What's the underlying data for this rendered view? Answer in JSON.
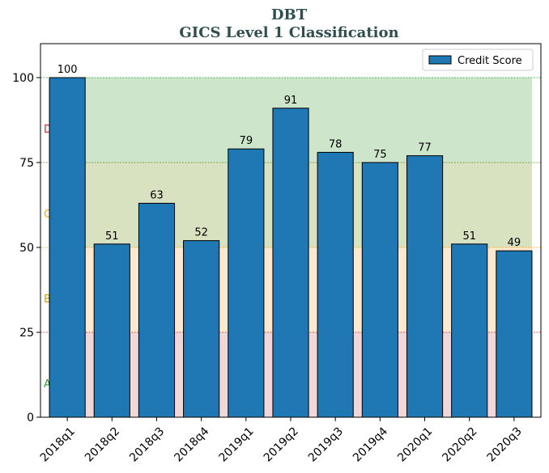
{
  "chart_data": {
    "type": "bar",
    "title": "DBT",
    "subtitle": "GICS Level 1 Classification",
    "categories": [
      "2018q1",
      "2018q2",
      "2018q3",
      "2018q4",
      "2019q1",
      "2019q2",
      "2019q3",
      "2019q4",
      "2020q1",
      "2020q2",
      "2020q3"
    ],
    "series": [
      {
        "name": "Credit Score",
        "values": [
          100,
          51,
          63,
          52,
          79,
          91,
          78,
          75,
          77,
          51,
          49
        ],
        "color": "#1f77b4"
      }
    ],
    "ylim": [
      0,
      110
    ],
    "yticks": [
      0,
      25,
      50,
      75,
      100
    ],
    "xlabel": "",
    "ylabel": "",
    "legend": {
      "position": "top-right"
    },
    "bands": [
      {
        "label": "A",
        "from": 0,
        "to": 25,
        "color": "#f2d7d9",
        "line_color": "#d62728",
        "label_color": "#2ca02c"
      },
      {
        "label": "B",
        "from": 25,
        "to": 50,
        "color": "#fde9cf",
        "line_color": "#ff9f00",
        "label_color": "#d4a000"
      },
      {
        "label": "C",
        "from": 50,
        "to": 75,
        "color": "#d8e2c1",
        "line_color": "#6b8e23",
        "label_color": "#ff9f00"
      },
      {
        "label": "D",
        "from": 75,
        "to": 100,
        "color": "#cde6cb",
        "line_color": "#2ca02c",
        "label_color": "#d62728"
      }
    ]
  }
}
